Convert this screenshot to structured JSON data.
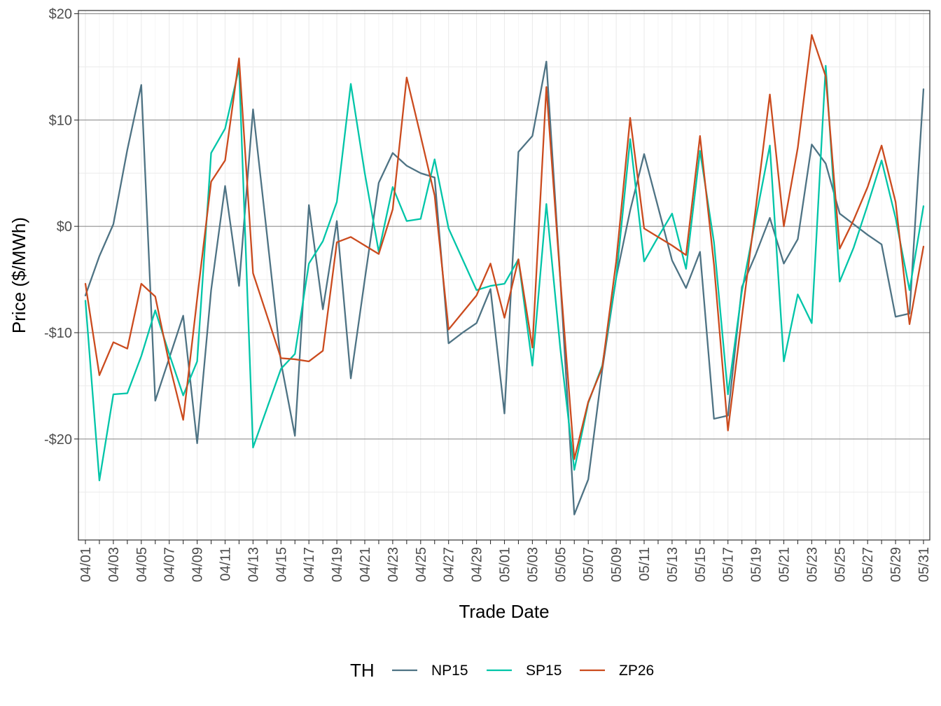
{
  "chart_data": {
    "type": "line",
    "title": "",
    "xlabel": "Trade Date",
    "ylabel": "Price ($/MWh)",
    "ylim": [
      -29.5,
      20.3
    ],
    "y_ticks": [
      {
        "value": 20,
        "label": "$20"
      },
      {
        "value": 10,
        "label": "$10"
      },
      {
        "value": 0,
        "label": "$0"
      },
      {
        "value": -10,
        "label": "-$10"
      },
      {
        "value": -20,
        "label": "-$20"
      }
    ],
    "x": [
      "04/01",
      "04/02",
      "04/03",
      "04/04",
      "04/05",
      "04/06",
      "04/07",
      "04/08",
      "04/09",
      "04/10",
      "04/11",
      "04/12",
      "04/13",
      "04/14",
      "04/15",
      "04/16",
      "04/17",
      "04/18",
      "04/19",
      "04/20",
      "04/21",
      "04/22",
      "04/23",
      "04/24",
      "04/25",
      "04/26",
      "04/27",
      "04/28",
      "04/29",
      "04/30",
      "05/01",
      "05/02",
      "05/03",
      "05/04",
      "05/05",
      "05/06",
      "05/07",
      "05/08",
      "05/09",
      "05/10",
      "05/11",
      "05/12",
      "05/13",
      "05/14",
      "05/15",
      "05/16",
      "05/17",
      "05/18",
      "05/19",
      "05/20",
      "05/21",
      "05/22",
      "05/23",
      "05/24",
      "05/25",
      "05/26",
      "05/27",
      "05/28",
      "05/29",
      "05/30",
      "05/31"
    ],
    "x_tick_labels": [
      "04/01",
      "04/03",
      "04/05",
      "04/07",
      "04/09",
      "04/11",
      "04/13",
      "04/15",
      "04/17",
      "04/19",
      "04/21",
      "04/23",
      "04/25",
      "04/27",
      "04/29",
      "05/01",
      "05/03",
      "05/05",
      "05/07",
      "05/09",
      "05/11",
      "05/13",
      "05/15",
      "05/17",
      "05/19",
      "05/21",
      "05/23",
      "05/25",
      "05/27",
      "05/29",
      "05/31"
    ],
    "grid": true,
    "legend": {
      "position": "bottom",
      "title": "TH"
    },
    "series": [
      {
        "name": "NP15",
        "color": "#4e7384",
        "values": [
          -6.5,
          -2.8,
          0.2,
          7.2,
          13.3,
          -16.4,
          -12.4,
          -8.4,
          -20.4,
          -6.0,
          3.8,
          -5.6,
          11.0,
          -0.8,
          -12.8,
          -19.7,
          2.0,
          -7.8,
          0.5,
          -14.3,
          -5.0,
          4.1,
          6.9,
          5.7,
          5.0,
          4.6,
          -11.0,
          -10.0,
          -9.1,
          -5.9,
          -17.6,
          7.0,
          8.5,
          15.5,
          -5.0,
          -27.1,
          -23.8,
          -13.5,
          -4.8,
          1.5,
          6.8,
          1.8,
          -3.2,
          -5.8,
          -2.4,
          -18.1,
          -17.8,
          -5.7,
          -2.6,
          0.8,
          -3.5,
          -1.2,
          7.7,
          5.9,
          1.2,
          0.2,
          -0.8,
          -1.7,
          -8.5,
          -8.2,
          12.9
        ]
      },
      {
        "name": "SP15",
        "color": "#00c5a8",
        "values": [
          -7.0,
          -23.9,
          -15.8,
          -15.7,
          -12.2,
          -7.9,
          -12.0,
          -15.9,
          -12.7,
          6.9,
          9.2,
          14.9,
          -20.8,
          -17.1,
          -13.4,
          -12.0,
          -3.5,
          -1.4,
          2.3,
          13.4,
          5.0,
          -2.4,
          3.7,
          0.5,
          0.7,
          6.3,
          -0.2,
          -3.1,
          -6.0,
          -5.6,
          -5.4,
          -3.1,
          -13.1,
          2.1,
          -11.5,
          -22.9,
          -16.6,
          -13.1,
          -4.8,
          8.2,
          -3.3,
          -1.0,
          1.2,
          -4.0,
          7.1,
          -1.5,
          -15.8,
          -6.1,
          0.8,
          7.6,
          -12.7,
          -6.4,
          -9.1,
          15.1,
          -5.2,
          -2.0,
          2.0,
          6.2,
          0.8,
          -6.0,
          1.9
        ]
      },
      {
        "name": "ZP26",
        "color": "#cb4b1e",
        "values": [
          -5.4,
          -14.0,
          -10.9,
          -11.5,
          -5.4,
          -6.6,
          -12.9,
          -18.2,
          -6.8,
          4.2,
          6.2,
          15.8,
          -4.4,
          -8.4,
          -12.4,
          -12.5,
          -12.7,
          -11.7,
          -1.5,
          -1.0,
          -1.8,
          -2.6,
          1.6,
          14.0,
          8.5,
          2.9,
          -9.7,
          -8.1,
          -6.5,
          -3.5,
          -8.6,
          -3.1,
          -11.4,
          13.1,
          -5.0,
          -21.9,
          -16.5,
          -13.3,
          -3.3,
          10.2,
          -0.2,
          -1.0,
          -1.8,
          -2.7,
          8.5,
          -3.6,
          -19.2,
          -8.5,
          1.8,
          12.4,
          0.0,
          7.4,
          18.0,
          14.1,
          -2.1,
          0.6,
          3.7,
          7.6,
          2.3,
          -9.2,
          -1.9
        ]
      }
    ]
  }
}
